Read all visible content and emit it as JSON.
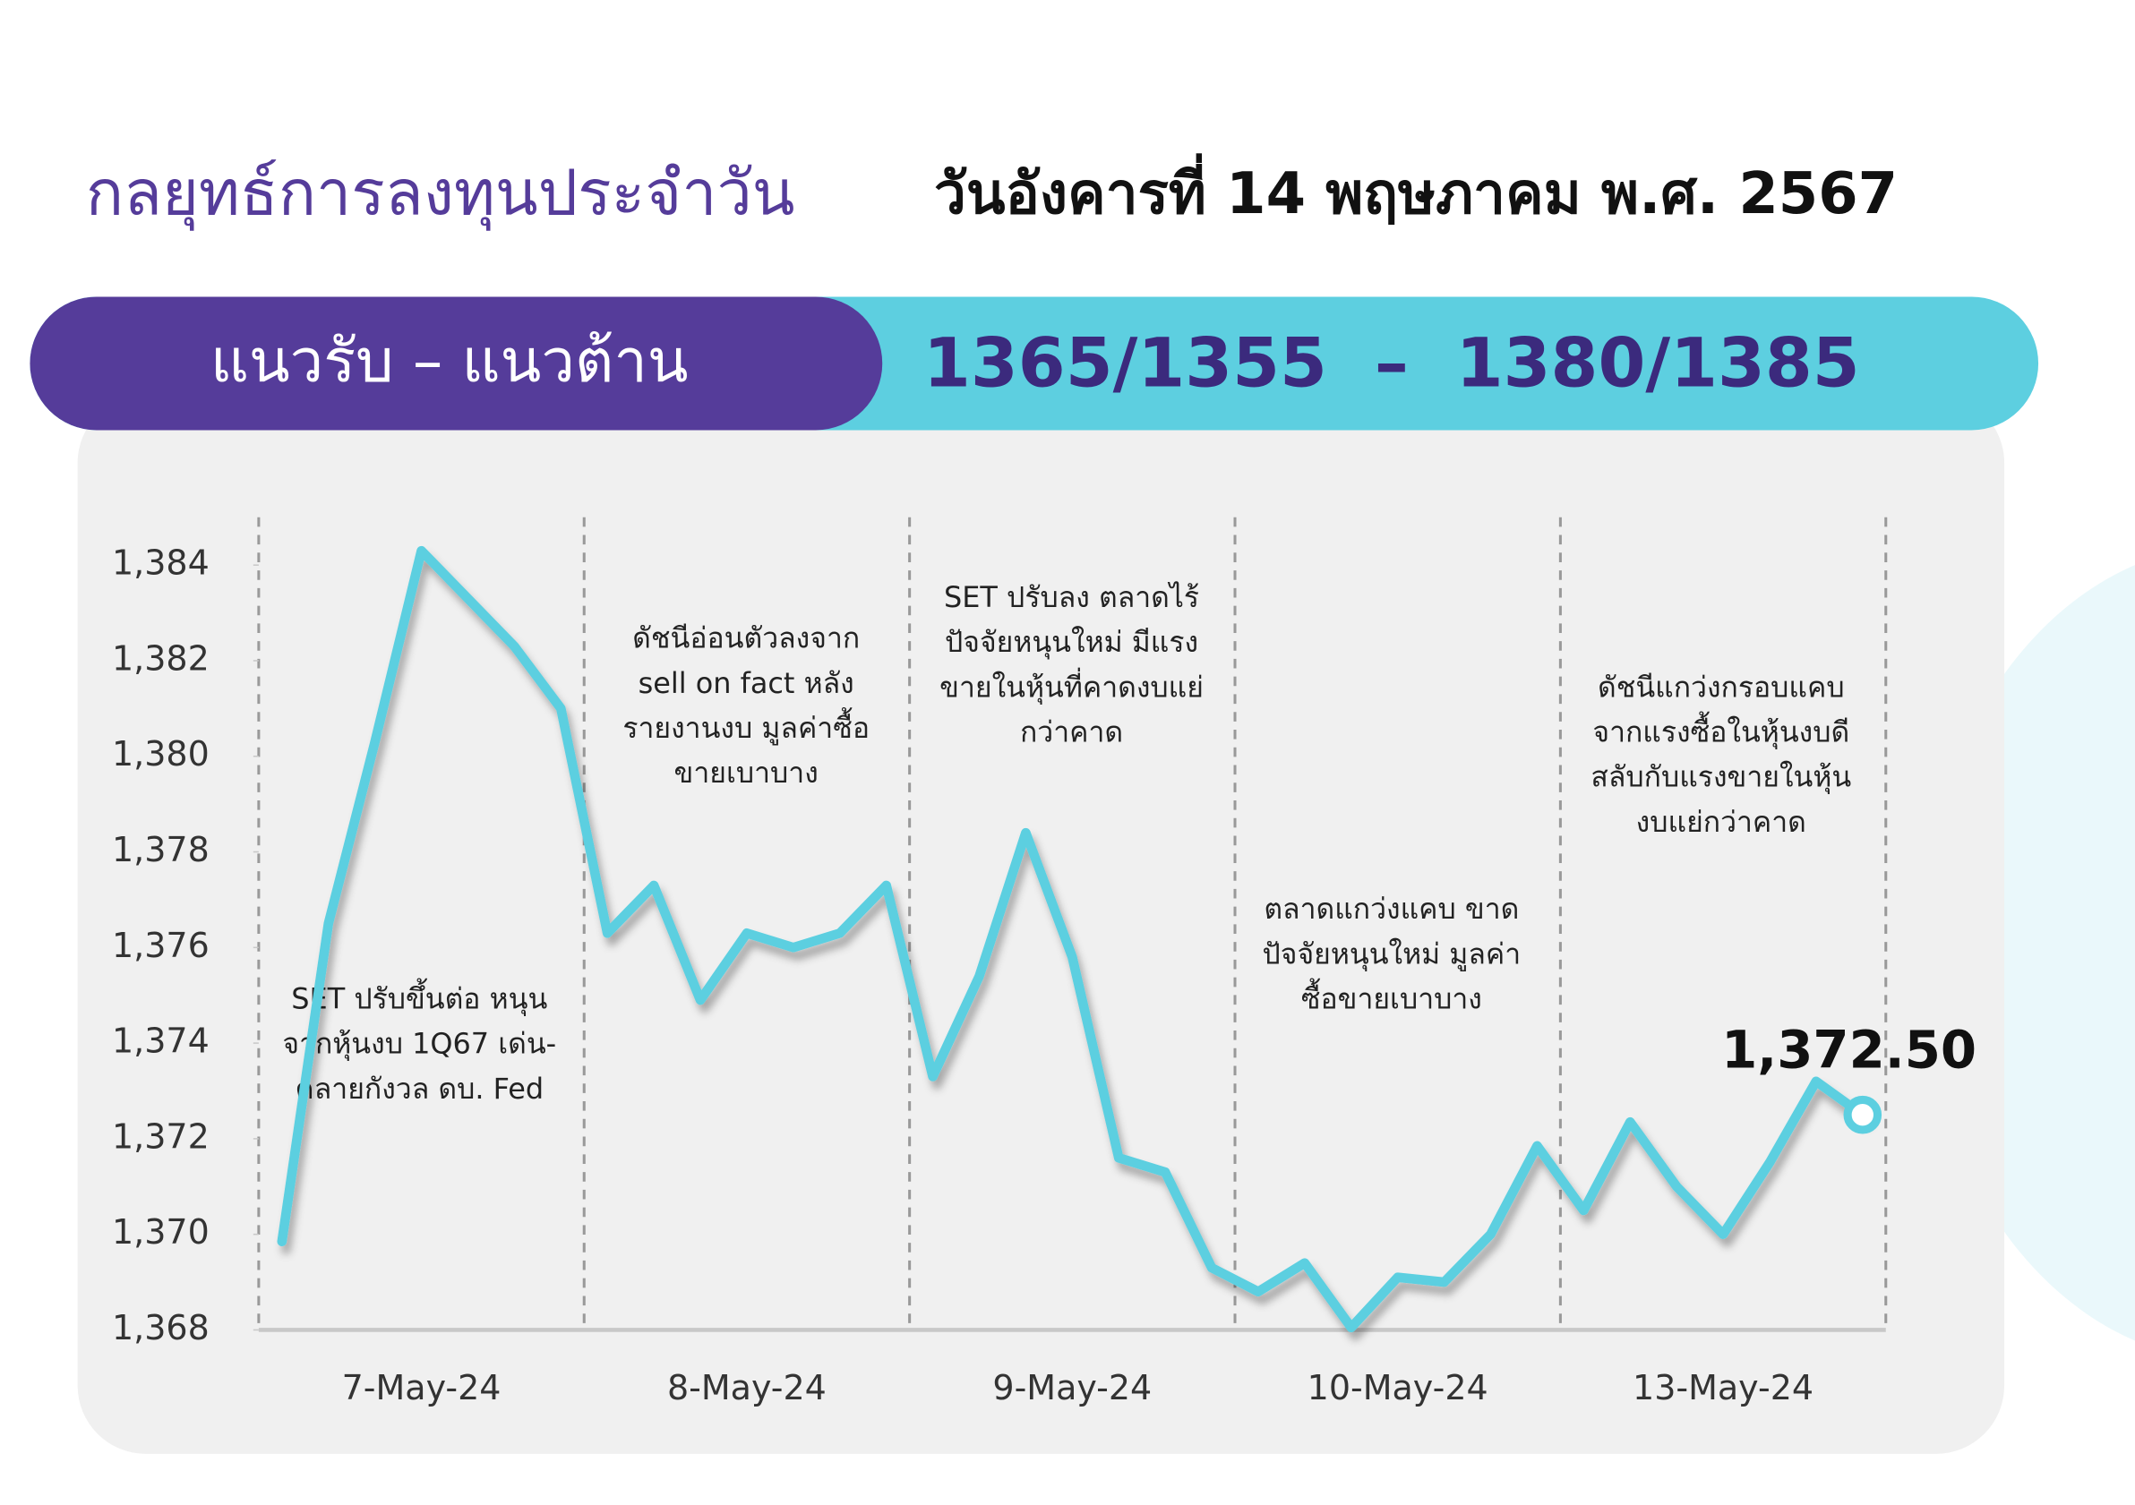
{
  "header": {
    "title": "กลยุทธ์การลงทุนประจำวัน",
    "date": "วันอังคารที่ 14 พฤษภาคม พ.ศ. 2567"
  },
  "banner": {
    "label": "แนวรับ – แนวต้าน",
    "levels": "1365/1355  –  1380/1385"
  },
  "chart_data": {
    "type": "line",
    "categories": [
      null,
      null,
      null,
      "7-May-24",
      null,
      null,
      null,
      null,
      null,
      null,
      "8-May-24",
      null,
      null,
      null,
      null,
      null,
      null,
      "9-May-24",
      null,
      null,
      null,
      null,
      null,
      null,
      "10-May-24",
      null,
      null,
      null,
      null,
      null,
      null,
      "13-May-24",
      null,
      null,
      null
    ],
    "series": [
      {
        "color": "#5ccfe0",
        "values": [
          1369.85,
          1376.5,
          1380.3,
          1384.3,
          1383.3,
          1382.3,
          1381.0,
          1376.3,
          1377.3,
          1374.9,
          1376.3,
          1376.0,
          1376.3,
          1377.3,
          1373.3,
          1375.4,
          1378.4,
          1375.8,
          1371.6,
          1371.3,
          1369.3,
          1368.8,
          1369.4,
          1368.05,
          1369.1,
          1369.0,
          1370.0,
          1371.85,
          1370.5,
          1372.35,
          1371.0,
          1370.0,
          1371.5,
          1373.2,
          1372.5
        ],
        "value_labels": [
          null,
          null,
          null,
          null,
          null,
          null,
          null,
          null,
          null,
          null,
          null,
          null,
          null,
          null,
          null,
          null,
          null,
          null,
          null,
          null,
          null,
          null,
          null,
          null,
          null,
          null,
          null,
          null,
          null,
          null,
          null,
          null,
          null,
          null,
          "1,372.50"
        ]
      }
    ],
    "ylim": [
      1368,
      1385
    ],
    "yticks": [
      {
        "value": 1368,
        "label": "1,368"
      },
      {
        "value": 1370,
        "label": "1,370"
      },
      {
        "value": 1372,
        "label": "1,372"
      },
      {
        "value": 1374,
        "label": "1,374"
      },
      {
        "value": 1376,
        "label": "1,376"
      },
      {
        "value": 1378,
        "label": "1,378"
      },
      {
        "value": 1380,
        "label": "1,380"
      },
      {
        "value": 1382,
        "label": "1,382"
      },
      {
        "value": 1384,
        "label": "1,384"
      }
    ],
    "annotations": [
      [
        "SET ปรับขึ้นต่อ หนุน",
        "จากหุ้นงบ 1Q67 เด่น-",
        "คลายกังวล ดบ. Fed"
      ],
      [
        "ดัชนีอ่อนตัวลงจาก",
        "sell on fact หลัง",
        "รายงานงบ มูลค่าซื้อ",
        "ขายเบาบาง"
      ],
      [
        "SET ปรับลง ตลาดไร้",
        "ปัจจัยหนุนใหม่ มีแรง",
        "ขายในหุ้นที่คาดงบแย่",
        "กว่าคาด"
      ],
      [
        "ตลาดแกว่งแคบ ขาด",
        "ปัจจัยหนุนใหม่ มูลค่า",
        "ซื้อขายเบาบาง"
      ],
      [
        "ดัชนีแกว่งกรอบแคบ",
        "จากแรงซื้อในหุ้นงบดี",
        "สลับกับแรงขายในหุ้น",
        "งบแย่กว่าคาด"
      ]
    ]
  }
}
